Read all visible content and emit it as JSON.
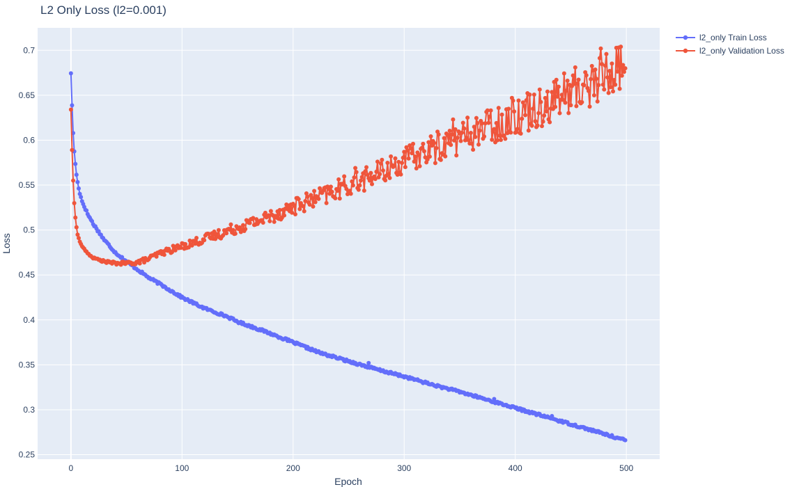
{
  "chart_data": {
    "type": "line",
    "title": "L2 Only Loss (l2=0.001)",
    "xlabel": "Epoch",
    "ylabel": "Loss",
    "xlim": [
      -30,
      530
    ],
    "ylim": [
      0.245,
      0.725
    ],
    "x_ticks": [
      0,
      100,
      200,
      300,
      400,
      500
    ],
    "y_ticks": [
      0.25,
      0.3,
      0.35,
      0.4,
      0.45,
      0.5,
      0.55,
      0.6,
      0.65,
      0.7
    ],
    "grid": true,
    "legend_position": "top-right",
    "markers": true,
    "n_points_per_series": 500,
    "series": [
      {
        "name": "l2_only Train Loss",
        "color": "#636efa",
        "keypoints": [
          [
            0,
            0.675
          ],
          [
            1,
            0.638
          ],
          [
            2,
            0.608
          ],
          [
            3,
            0.588
          ],
          [
            4,
            0.573
          ],
          [
            5,
            0.562
          ],
          [
            6,
            0.553
          ],
          [
            8,
            0.541
          ],
          [
            10,
            0.532
          ],
          [
            15,
            0.518
          ],
          [
            20,
            0.507
          ],
          [
            30,
            0.489
          ],
          [
            40,
            0.475
          ],
          [
            50,
            0.465
          ],
          [
            60,
            0.456
          ],
          [
            70,
            0.447
          ],
          [
            80,
            0.44
          ],
          [
            100,
            0.425
          ],
          [
            120,
            0.413
          ],
          [
            140,
            0.404
          ],
          [
            150,
            0.398
          ],
          [
            175,
            0.387
          ],
          [
            200,
            0.375
          ],
          [
            225,
            0.363
          ],
          [
            250,
            0.354
          ],
          [
            275,
            0.345
          ],
          [
            300,
            0.337
          ],
          [
            325,
            0.328
          ],
          [
            350,
            0.32
          ],
          [
            375,
            0.311
          ],
          [
            400,
            0.302
          ],
          [
            425,
            0.293
          ],
          [
            450,
            0.284
          ],
          [
            475,
            0.275
          ],
          [
            499,
            0.266
          ]
        ],
        "outliers": [
          [
            268,
            0.352
          ],
          [
            381,
            0.312
          ],
          [
            433,
            0.293
          ]
        ]
      },
      {
        "name": "l2_only Validation Loss",
        "color": "#ef553b",
        "keypoints": [
          [
            0,
            0.634
          ],
          [
            1,
            0.589
          ],
          [
            2,
            0.555
          ],
          [
            3,
            0.53
          ],
          [
            4,
            0.514
          ],
          [
            5,
            0.503
          ],
          [
            6,
            0.495
          ],
          [
            8,
            0.487
          ],
          [
            10,
            0.482
          ],
          [
            15,
            0.474
          ],
          [
            20,
            0.469
          ],
          [
            30,
            0.465
          ],
          [
            40,
            0.463
          ],
          [
            50,
            0.463
          ],
          [
            60,
            0.464
          ],
          [
            70,
            0.468
          ],
          [
            80,
            0.474
          ],
          [
            90,
            0.478
          ],
          [
            100,
            0.482
          ],
          [
            125,
            0.492
          ],
          [
            150,
            0.503
          ],
          [
            175,
            0.513
          ],
          [
            200,
            0.526
          ],
          [
            225,
            0.537
          ],
          [
            250,
            0.55
          ],
          [
            275,
            0.562
          ],
          [
            300,
            0.577
          ],
          [
            325,
            0.59
          ],
          [
            350,
            0.603
          ],
          [
            375,
            0.615
          ],
          [
            400,
            0.627
          ],
          [
            425,
            0.64
          ],
          [
            450,
            0.654
          ],
          [
            475,
            0.668
          ],
          [
            499,
            0.686
          ]
        ],
        "outliers": [
          [
            477,
            0.702
          ],
          [
            493,
            0.703
          ],
          [
            495,
            0.704
          ],
          [
            498,
            0.676
          ],
          [
            384,
            0.6
          ],
          [
            344,
            0.623
          ],
          [
            256,
            0.569
          ],
          [
            398,
            0.644
          ]
        ],
        "noise": [
          [
            0,
            0.0
          ],
          [
            100,
            0.004
          ],
          [
            250,
            0.012
          ],
          [
            400,
            0.022
          ],
          [
            499,
            0.03
          ]
        ]
      }
    ]
  }
}
